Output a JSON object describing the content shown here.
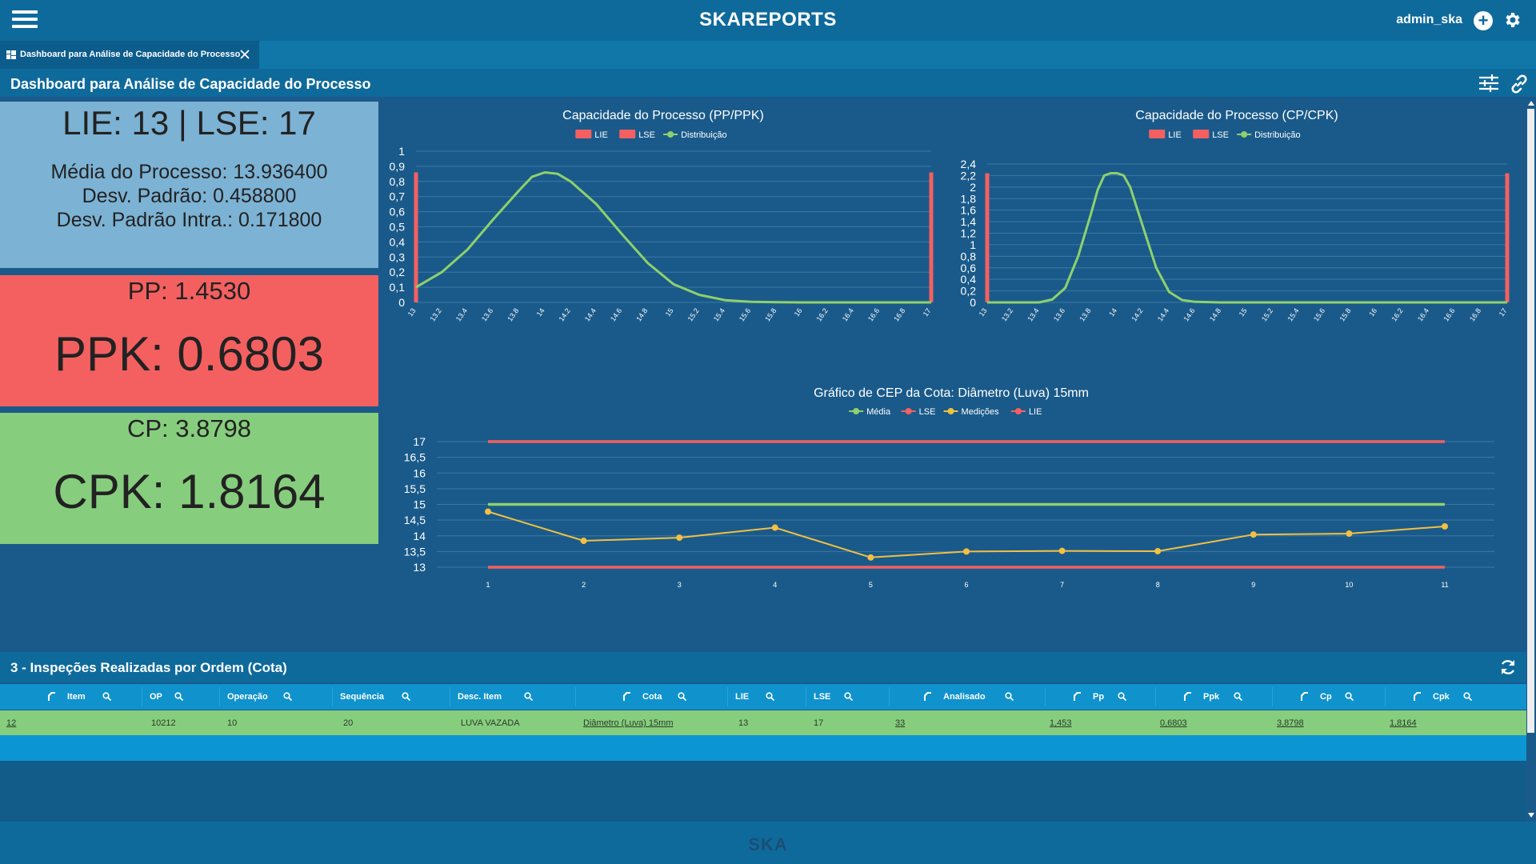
{
  "header": {
    "brand": "SKAREPORTS",
    "user": "admin_ska"
  },
  "tab": {
    "label": "Dashboard para Análise de Capacidade do Processo"
  },
  "page": {
    "title": "Dashboard para Análise de Capacidade do Processo"
  },
  "cards": {
    "limits": "LIE: 13 | LSE: 17",
    "media": "Média do Processo: 13.936400",
    "desvio": "Desv. Padrão: 0.458800",
    "desvio_intra": "Desv. Padrão Intra.: 0.171800",
    "pp": "PP: 1.4530",
    "ppk": "PPK: 0.6803",
    "cp": "CP: 3.8798",
    "cpk": "CPK: 1.8164"
  },
  "colors": {
    "lie": "#f46060",
    "lse": "#f46060",
    "distribution": "#8ed16c",
    "media": "#8ed16c",
    "medicoes": "#f2c042",
    "grid": "#3f78a3"
  },
  "chart_data": [
    {
      "type": "line",
      "title": "Capacidade do Processo (PP/PPK)",
      "legend": [
        "LIE",
        "LSE",
        "Distribuição"
      ],
      "x": [
        "13",
        "13.2",
        "13.4",
        "13.6",
        "13.8",
        "14",
        "14.2",
        "14.4",
        "14.6",
        "14.8",
        "15",
        "15.2",
        "15.4",
        "15.6",
        "15.8",
        "16",
        "16.2",
        "16.4",
        "16.6",
        "16.8",
        "17"
      ],
      "xlim": [
        13,
        17
      ],
      "ylim": [
        0,
        1
      ],
      "yticks": [
        "0",
        "0,1",
        "0,2",
        "0,3",
        "0,4",
        "0,5",
        "0,6",
        "0,7",
        "0,8",
        "0,9",
        "1"
      ],
      "lie": {
        "x": 13,
        "y": 0.86
      },
      "lse": {
        "x": 17,
        "y": 0.86
      },
      "series": [
        {
          "name": "Distribuição",
          "points": [
            [
              13,
              0.1
            ],
            [
              13.2,
              0.2
            ],
            [
              13.4,
              0.35
            ],
            [
              13.6,
              0.55
            ],
            [
              13.8,
              0.74
            ],
            [
              13.9,
              0.83
            ],
            [
              14,
              0.86
            ],
            [
              14.1,
              0.85
            ],
            [
              14.2,
              0.8
            ],
            [
              14.4,
              0.65
            ],
            [
              14.6,
              0.45
            ],
            [
              14.8,
              0.26
            ],
            [
              15,
              0.12
            ],
            [
              15.2,
              0.05
            ],
            [
              15.4,
              0.015
            ],
            [
              15.6,
              0.004
            ],
            [
              15.8,
              0.001
            ],
            [
              16,
              0
            ],
            [
              17,
              0
            ]
          ]
        }
      ]
    },
    {
      "type": "line",
      "title": "Capacidade do Processo (CP/CPK)",
      "legend": [
        "LIE",
        "LSE",
        "Distribuição"
      ],
      "x": [
        "13",
        "13.2",
        "13.4",
        "13.6",
        "13.8",
        "14",
        "14.2",
        "14.4",
        "14.6",
        "14.8",
        "15",
        "15.2",
        "15.4",
        "15.6",
        "15.8",
        "16",
        "16.2",
        "16.4",
        "16.6",
        "16.8",
        "17"
      ],
      "xlim": [
        13,
        17
      ],
      "ylim": [
        0,
        2.4
      ],
      "yticks": [
        "0",
        "0,2",
        "0,4",
        "0,6",
        "0,8",
        "1",
        "1,2",
        "1,4",
        "1,6",
        "1,8",
        "2",
        "2,2",
        "2,4"
      ],
      "lie": {
        "x": 13,
        "y": 2.24
      },
      "lse": {
        "x": 17,
        "y": 2.24
      },
      "series": [
        {
          "name": "Distribuição",
          "points": [
            [
              13,
              0
            ],
            [
              13.4,
              0
            ],
            [
              13.5,
              0.05
            ],
            [
              13.6,
              0.25
            ],
            [
              13.7,
              0.8
            ],
            [
              13.8,
              1.55
            ],
            [
              13.85,
              1.95
            ],
            [
              13.9,
              2.2
            ],
            [
              13.95,
              2.24
            ],
            [
              14,
              2.24
            ],
            [
              14.05,
              2.2
            ],
            [
              14.1,
              2.0
            ],
            [
              14.2,
              1.3
            ],
            [
              14.3,
              0.6
            ],
            [
              14.4,
              0.18
            ],
            [
              14.5,
              0.04
            ],
            [
              14.6,
              0.01
            ],
            [
              14.8,
              0
            ],
            [
              17,
              0
            ]
          ]
        }
      ]
    },
    {
      "type": "line",
      "title": "Gráfico de CEP da Cota: Diâmetro (Luva) 15mm",
      "legend": [
        "Média",
        "LSE",
        "Medições",
        "LIE"
      ],
      "x": [
        1,
        2,
        3,
        4,
        5,
        6,
        7,
        8,
        9,
        10,
        11
      ],
      "ylim": [
        13,
        17
      ],
      "yticks": [
        "13",
        "13,5",
        "14",
        "14,5",
        "15",
        "15,5",
        "16",
        "16,5",
        "17"
      ],
      "series": [
        {
          "name": "Média",
          "values": [
            15,
            15,
            15,
            15,
            15,
            15,
            15,
            15,
            15,
            15,
            15
          ]
        },
        {
          "name": "LSE",
          "values": [
            17,
            17,
            17,
            17,
            17,
            17,
            17,
            17,
            17,
            17,
            17
          ]
        },
        {
          "name": "Medições",
          "values": [
            14.77,
            13.84,
            13.94,
            14.26,
            13.31,
            13.5,
            13.52,
            13.51,
            14.04,
            14.07,
            14.3
          ]
        },
        {
          "name": "LIE",
          "values": [
            13,
            13,
            13,
            13,
            13,
            13,
            13,
            13,
            13,
            13,
            13
          ]
        }
      ]
    }
  ],
  "section": {
    "title": "3 - Inspeções Realizadas por Ordem (Cota)"
  },
  "table": {
    "columns": [
      "Item",
      "OP",
      "Operação",
      "Sequência",
      "Desc. Item",
      "Cota",
      "LIE",
      "LSE",
      "Analisado",
      "Pp",
      "Ppk",
      "Cp",
      "Cpk"
    ],
    "rows": [
      [
        "12",
        "10212",
        "10",
        "20",
        "LUVA VAZADA",
        "Diâmetro (Luva) 15mm",
        "13",
        "17",
        "33",
        "1,453",
        "0,6803",
        "3,8798",
        "1,8164"
      ]
    ]
  },
  "footer": {
    "logo": "SKA"
  }
}
